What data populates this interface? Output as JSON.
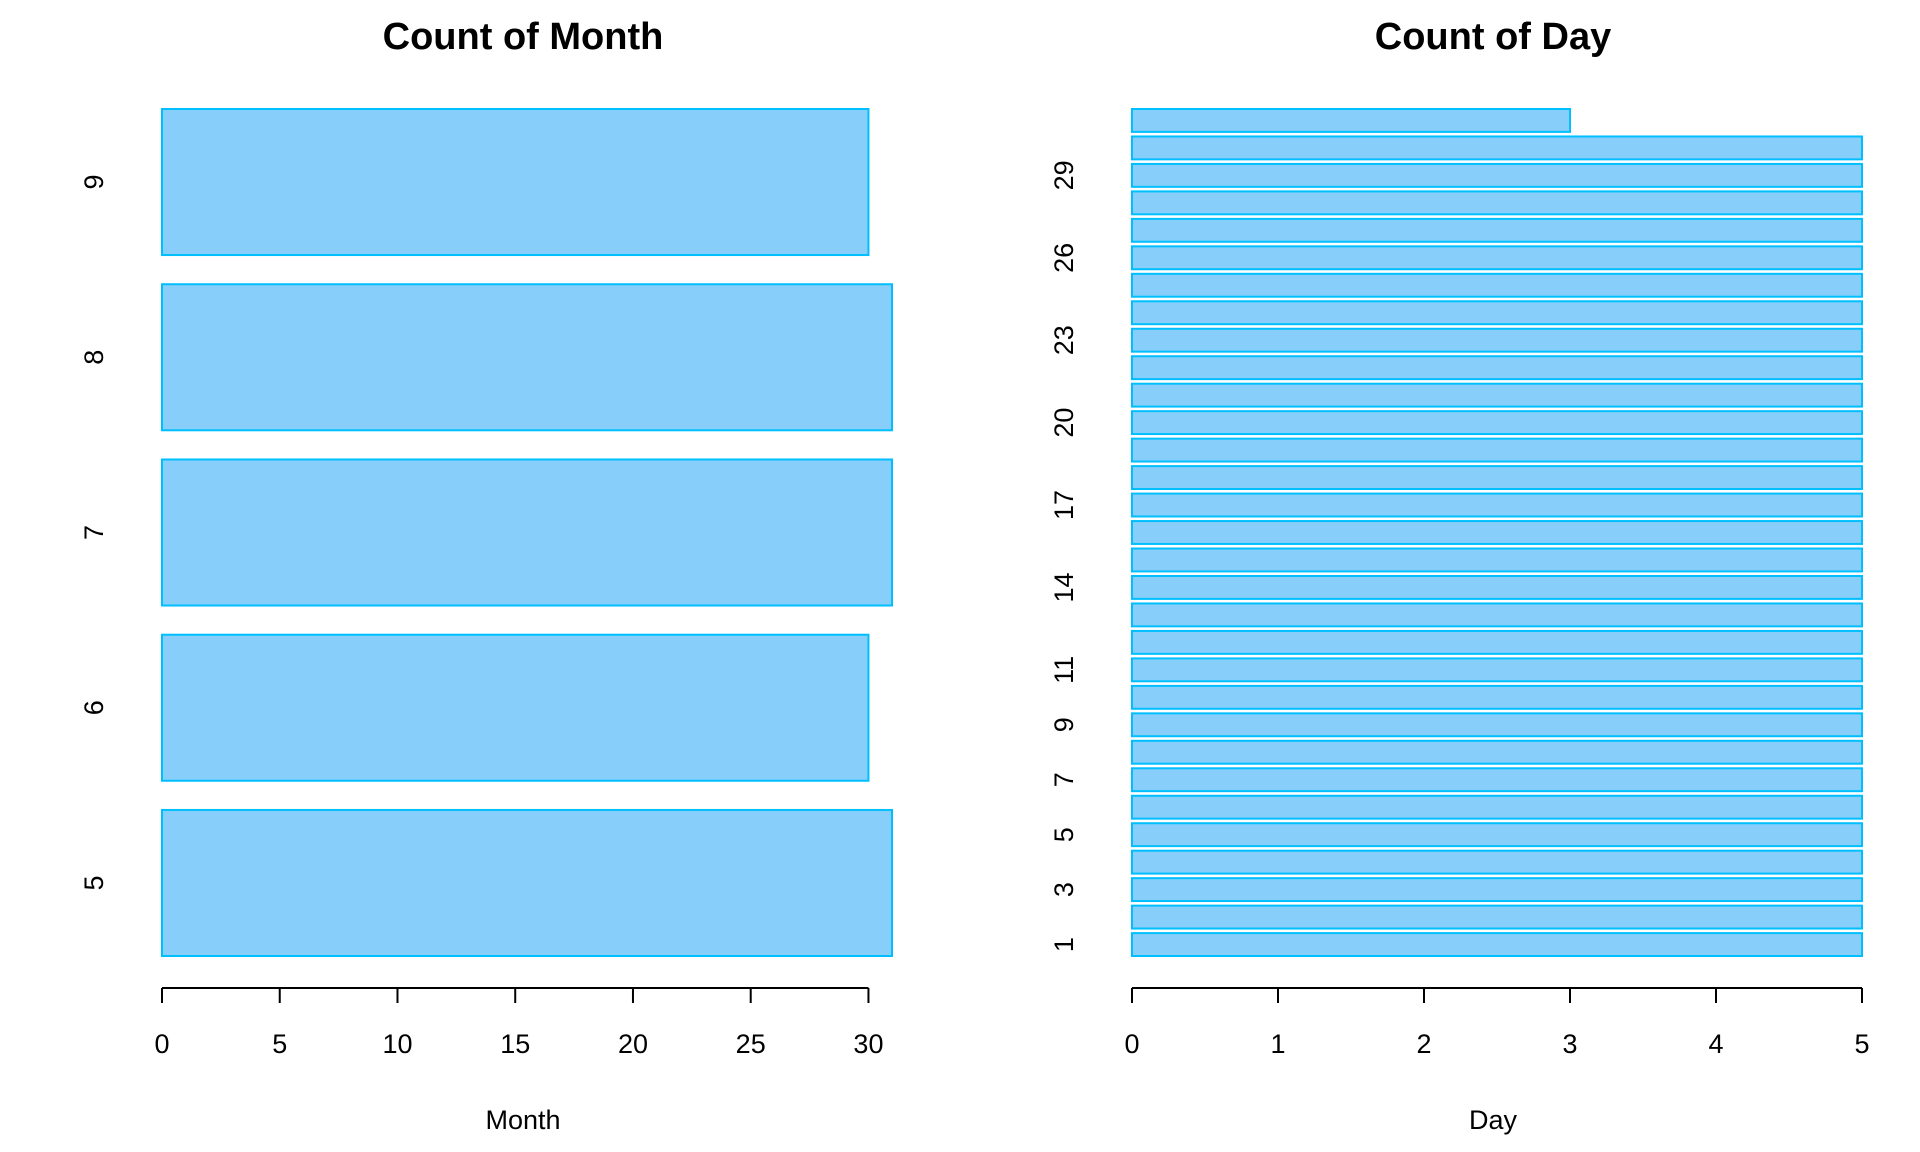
{
  "chart_data": [
    {
      "type": "bar",
      "orientation": "horizontal",
      "title": "Count of Month",
      "x_label": "Month",
      "categories": [
        "5",
        "6",
        "7",
        "8",
        "9"
      ],
      "values": [
        31,
        30,
        31,
        31,
        30
      ],
      "color": "#87cefa",
      "edge_color": "#00bfff",
      "xlim": [
        0,
        31
      ],
      "xticks": [
        0,
        5,
        10,
        15,
        20,
        25,
        30
      ]
    },
    {
      "type": "bar",
      "orientation": "horizontal",
      "title": "Count of Day",
      "x_label": "Day",
      "categories": [
        "1",
        null,
        "3",
        null,
        "5",
        null,
        "7",
        null,
        "9",
        null,
        "11",
        null,
        null,
        "14",
        null,
        null,
        "17",
        null,
        null,
        "20",
        null,
        null,
        "23",
        null,
        null,
        "26",
        null,
        null,
        "29",
        null,
        null
      ],
      "values": [
        5,
        5,
        5,
        5,
        5,
        5,
        5,
        5,
        5,
        5,
        5,
        5,
        5,
        5,
        5,
        5,
        5,
        5,
        5,
        5,
        5,
        5,
        5,
        5,
        5,
        5,
        5,
        5,
        5,
        5,
        3
      ],
      "color": "#87cefa",
      "edge_color": "#00bfff",
      "xlim": [
        0,
        5
      ],
      "xticks": [
        0,
        1,
        2,
        3,
        4,
        5
      ]
    }
  ]
}
